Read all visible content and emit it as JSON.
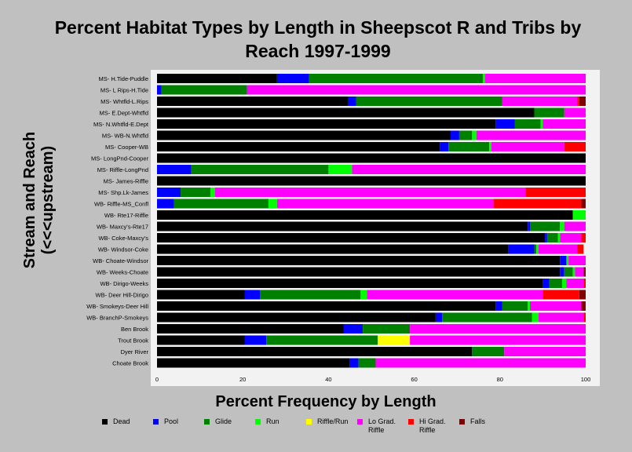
{
  "chart_data": {
    "type": "bar",
    "orientation": "horizontal-stacked",
    "title": "Percent Habitat Types by Length in Sheepscot R and Tribs by Reach 1997-1999",
    "xlabel": "Percent Frequency by Length",
    "ylabel": "Stream and Reach (<<<upstream)",
    "xlim": [
      0,
      100
    ],
    "xticks": [
      0,
      20,
      40,
      60,
      80,
      100
    ],
    "legend_position": "bottom",
    "categories": [
      "MS- H.Tide-Puddle",
      "MS- L Rips-H.Tide",
      "MS- Whtfld-L.Rips",
      "MS- E.Dept-Whtfld",
      "MS- N.Whtfld-E.Dept",
      "MS- WB-N.Whtfld",
      "MS- Cooper-WB",
      "MS- LongPnd-Cooper",
      "MS- Riffle-LongPnd",
      "MS- James-Riffle",
      "MS- Shp.Lk-James",
      "WB- Riffle-MS_Confl",
      "WB- Rte17-Riffle",
      "WB- Maxcy's-Rte17",
      "WB- Coke-Maxcy's",
      "WB- Windsor-Coke",
      "WB- Choate-Windsor",
      "WB- Weeks-Choate",
      "WB- Dirigo-Weeks",
      "WB- Deer Hill-Dirigo",
      "WB- Smokeys-Deer Hill",
      "WB- BranchP-Smokeys",
      "Ben Brook",
      "Trout Brook",
      "Dyer River",
      "Choate Brook"
    ],
    "series": [
      {
        "name": "Dead",
        "color": "#000000",
        "values": [
          28,
          0,
          44.5,
          88,
          79,
          68.5,
          66,
          100,
          0,
          100,
          0,
          0,
          97,
          86.5,
          90.5,
          82,
          94,
          94,
          90,
          20.5,
          79,
          65,
          43.5,
          20.5,
          73.5,
          45
        ]
      },
      {
        "name": "Pool",
        "color": "#0000ff",
        "values": [
          7.5,
          1,
          2,
          0,
          4.5,
          2,
          2,
          0,
          8,
          0,
          5.5,
          4,
          0,
          0.5,
          0.5,
          6,
          1.5,
          1,
          1.5,
          3.5,
          1.5,
          1.5,
          4.5,
          5,
          0,
          2
        ]
      },
      {
        "name": "Glide",
        "color": "#008000",
        "values": [
          40.5,
          20,
          34,
          7,
          6,
          3,
          9.5,
          0,
          32,
          0,
          7,
          22,
          0,
          7,
          2.5,
          0.5,
          0,
          2,
          3,
          23.5,
          6,
          21,
          11,
          26,
          7.5,
          4
        ]
      },
      {
        "name": "Run",
        "color": "#00ff00",
        "values": [
          0.5,
          0,
          0,
          0,
          0.5,
          1,
          0.5,
          0,
          5.5,
          0,
          1,
          2,
          3,
          1,
          0.5,
          0.5,
          0.5,
          0.5,
          1,
          1.5,
          0.5,
          1.5,
          0,
          0,
          0,
          0
        ]
      },
      {
        "name": "Riffle/Run",
        "color": "#ffff00",
        "values": [
          0,
          0,
          0,
          0,
          0,
          0,
          0,
          0,
          0,
          0,
          0,
          0,
          0,
          0,
          0,
          0,
          0,
          0,
          0,
          0,
          0,
          0,
          0,
          7.5,
          0,
          0
        ]
      },
      {
        "name": "Lo Grad. Riffle",
        "color": "#ff00ff",
        "values": [
          23.5,
          79,
          17.5,
          5,
          10,
          25.5,
          17,
          0,
          54.5,
          0,
          72.5,
          50.5,
          0,
          5,
          5,
          9,
          4,
          2,
          4,
          41,
          12,
          10.5,
          41,
          41,
          19,
          49
        ]
      },
      {
        "name": "Hi Grad. Riffle",
        "color": "#ff0000",
        "values": [
          0,
          0,
          0.5,
          0,
          0,
          0,
          5,
          0,
          0,
          0,
          14,
          20.5,
          0,
          0,
          1,
          1.5,
          0,
          0,
          0.5,
          8.5,
          0,
          0.5,
          0,
          0,
          0,
          0
        ]
      },
      {
        "name": "Falls",
        "color": "#800000",
        "values": [
          0,
          0,
          1.5,
          0,
          0,
          0,
          0,
          0,
          0,
          0,
          0,
          1,
          0,
          0,
          0,
          0,
          0,
          0.5,
          0,
          1.5,
          1,
          0,
          0,
          0,
          0,
          0
        ]
      }
    ]
  },
  "legend": {
    "items": [
      {
        "label": "Dead",
        "color": "#000000"
      },
      {
        "label": "Pool",
        "color": "#0000ff"
      },
      {
        "label": "Glide",
        "color": "#008000"
      },
      {
        "label": "Run",
        "color": "#00ff00"
      },
      {
        "label": "Riffle/Run",
        "color": "#ffff00"
      },
      {
        "label": "Lo Grad.\nRiffle",
        "color": "#ff00ff"
      },
      {
        "label": "Hi Grad.\nRiffle",
        "color": "#ff0000"
      },
      {
        "label": "Falls",
        "color": "#800000"
      }
    ]
  }
}
